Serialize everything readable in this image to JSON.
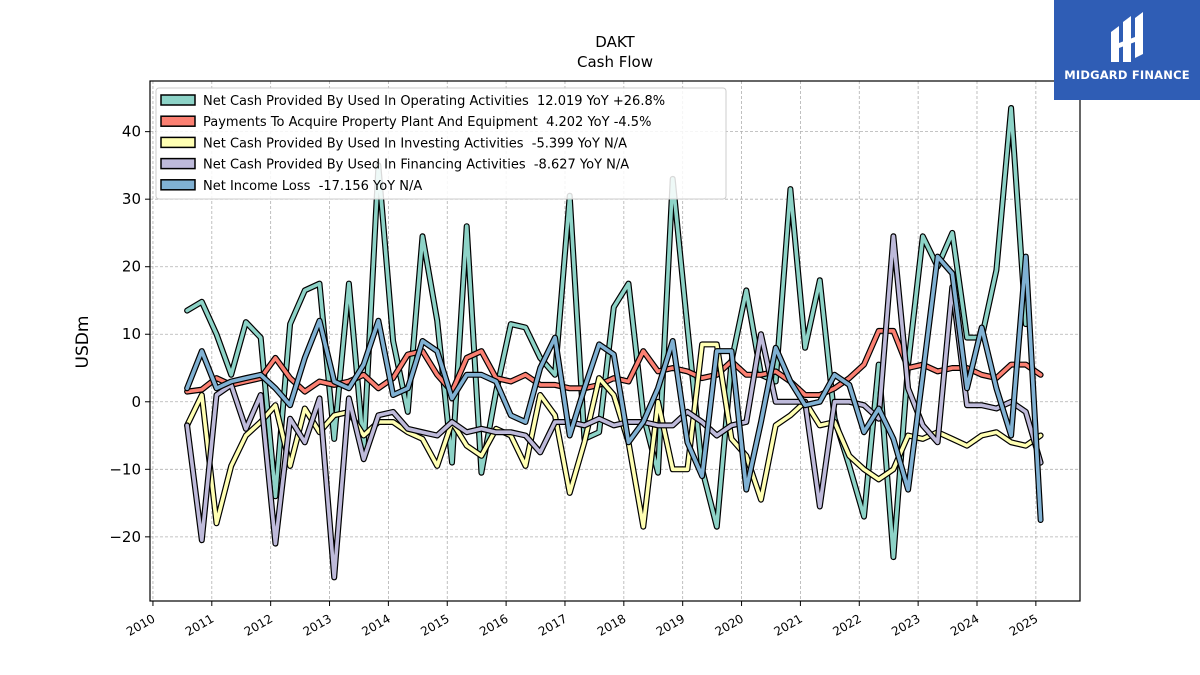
{
  "logo": {
    "text": "MIDGARD FINANCE"
  },
  "chart_data": {
    "type": "line",
    "title": "DAKT",
    "subtitle": "Cash Flow",
    "ylabel": "USDm",
    "xlabel": "",
    "xlim": [
      2009.95,
      2025.75
    ],
    "ylim": [
      -29.5,
      47.5
    ],
    "yticks": [
      -20,
      -10,
      0,
      10,
      20,
      30,
      40
    ],
    "xticks": [
      "2010",
      "2011",
      "2012",
      "2013",
      "2014",
      "2015",
      "2016",
      "2017",
      "2018",
      "2019",
      "2020",
      "2021",
      "2022",
      "2023",
      "2024",
      "2025"
    ],
    "grid": true,
    "legend_position": "upper-left",
    "series": [
      {
        "name": "Net Cash Provided By Used In Operating Activities",
        "legend": "Net Cash Provided By Used In Operating Activities  12.019 YoY +26.8%",
        "color": "#8dd3c7",
        "x": [
          2010.58,
          2010.83,
          2011.08,
          2011.33,
          2011.58,
          2011.83,
          2012.08,
          2012.33,
          2012.58,
          2012.83,
          2013.08,
          2013.33,
          2013.58,
          2013.83,
          2014.08,
          2014.33,
          2014.58,
          2014.83,
          2015.08,
          2015.33,
          2015.58,
          2015.83,
          2016.08,
          2016.33,
          2016.58,
          2016.83,
          2017.08,
          2017.33,
          2017.58,
          2017.83,
          2018.08,
          2018.33,
          2018.58,
          2018.83,
          2019.08,
          2019.33,
          2019.58,
          2019.83,
          2020.08,
          2020.33,
          2020.58,
          2020.83,
          2021.08,
          2021.33,
          2021.58,
          2021.83,
          2022.08,
          2022.33,
          2022.58,
          2022.83,
          2023.08,
          2023.33,
          2023.58,
          2023.83,
          2024.08,
          2024.33,
          2024.58,
          2024.83,
          2025.08
        ],
        "y": [
          13.5,
          14.8,
          10,
          4,
          11.8,
          9.5,
          -14,
          11.5,
          16.5,
          17.5,
          -5.5,
          17.5,
          -7,
          35,
          9,
          -1.5,
          24.5,
          12,
          -9,
          26,
          -10.5,
          1.5,
          11.5,
          11,
          6.5,
          4,
          30.5,
          -5.5,
          -4.5,
          14,
          17.5,
          -2,
          -10.5,
          33,
          11,
          -10,
          -18.5,
          6,
          16.5,
          4,
          3,
          31.5,
          8,
          18,
          -2.5,
          -9.5,
          -17,
          5.5,
          -23,
          5.5,
          24.5,
          20,
          25,
          9.5,
          9.5,
          19.5,
          43.5,
          11.5,
          null
        ]
      },
      {
        "name": "Payments To Acquire Property Plant And Equipment",
        "legend": "Payments To Acquire Property Plant And Equipment  4.202 YoY -4.5%",
        "color": "#fb8072",
        "x": [
          2010.58,
          2010.83,
          2011.08,
          2011.33,
          2011.58,
          2011.83,
          2012.08,
          2012.33,
          2012.58,
          2012.83,
          2013.08,
          2013.33,
          2013.58,
          2013.83,
          2014.08,
          2014.33,
          2014.58,
          2014.83,
          2015.08,
          2015.33,
          2015.58,
          2015.83,
          2016.08,
          2016.33,
          2016.58,
          2016.83,
          2017.08,
          2017.33,
          2017.58,
          2017.83,
          2018.08,
          2018.33,
          2018.58,
          2018.83,
          2019.08,
          2019.33,
          2019.58,
          2019.83,
          2020.08,
          2020.33,
          2020.58,
          2020.83,
          2021.08,
          2021.33,
          2021.58,
          2021.83,
          2022.08,
          2022.33,
          2022.58,
          2022.83,
          2023.08,
          2023.33,
          2023.58,
          2023.83,
          2024.08,
          2024.33,
          2024.58,
          2024.83,
          2025.08
        ],
        "y": [
          1.5,
          1.8,
          3.5,
          2.5,
          3,
          3.5,
          6.5,
          3.5,
          1.5,
          3,
          2.5,
          3,
          4,
          2,
          3.5,
          7,
          7.5,
          4,
          1.5,
          6.5,
          7.5,
          3.5,
          3,
          4,
          2.5,
          2.5,
          2,
          2,
          2.5,
          3.5,
          3,
          7.5,
          4.5,
          5,
          4.5,
          3.5,
          4,
          6,
          4,
          4,
          4.5,
          3,
          1,
          1,
          2,
          3.5,
          5.5,
          10.5,
          10.5,
          5,
          5.5,
          4.5,
          5,
          5,
          4,
          3.5,
          5.5,
          5.5,
          4
        ]
      },
      {
        "name": "Net Cash Provided By Used In Investing Activities",
        "legend": "Net Cash Provided By Used In Investing Activities  -5.399 YoY N/A",
        "color": "#ffffb3",
        "x": [
          2010.58,
          2010.83,
          2011.08,
          2011.33,
          2011.58,
          2011.83,
          2012.08,
          2012.33,
          2012.58,
          2012.83,
          2013.08,
          2013.33,
          2013.58,
          2013.83,
          2014.08,
          2014.33,
          2014.58,
          2014.83,
          2015.08,
          2015.33,
          2015.58,
          2015.83,
          2016.08,
          2016.33,
          2016.58,
          2016.83,
          2017.08,
          2017.33,
          2017.58,
          2017.83,
          2018.08,
          2018.33,
          2018.58,
          2018.83,
          2019.08,
          2019.33,
          2019.58,
          2019.83,
          2020.08,
          2020.33,
          2020.58,
          2020.83,
          2021.08,
          2021.33,
          2021.58,
          2021.83,
          2022.08,
          2022.33,
          2022.58,
          2022.83,
          2023.08,
          2023.33,
          2023.58,
          2023.83,
          2024.08,
          2024.33,
          2024.58,
          2024.83,
          2025.08
        ],
        "y": [
          -3.5,
          1,
          -18,
          -9.5,
          -5,
          -3,
          -0.5,
          -9.5,
          -1,
          -4.5,
          -2,
          -1.5,
          -5,
          -3,
          -3,
          -4.5,
          -5.5,
          -9.5,
          -3,
          -6.5,
          -8,
          -4,
          -5,
          -9.5,
          1,
          -2,
          -13.5,
          -6,
          3.5,
          1,
          -6,
          -18.5,
          0,
          -10,
          -10,
          8.5,
          8.5,
          -5.5,
          -8,
          -14.5,
          -3.5,
          -2,
          0,
          -3.5,
          -3,
          -8,
          -10,
          -11.5,
          -10,
          -5,
          -5.5,
          -4.5,
          -5.5,
          -6.5,
          -5,
          -4.5,
          -6,
          -6.5,
          -5
        ]
      },
      {
        "name": "Net Cash Provided By Used In Financing Activities",
        "legend": "Net Cash Provided By Used In Financing Activities  -8.627 YoY N/A",
        "color": "#bebada",
        "x": [
          2010.58,
          2010.83,
          2011.08,
          2011.33,
          2011.58,
          2011.83,
          2012.08,
          2012.33,
          2012.58,
          2012.83,
          2013.08,
          2013.33,
          2013.58,
          2013.83,
          2014.08,
          2014.33,
          2014.58,
          2014.83,
          2015.08,
          2015.33,
          2015.58,
          2015.83,
          2016.08,
          2016.33,
          2016.58,
          2016.83,
          2017.08,
          2017.33,
          2017.58,
          2017.83,
          2018.08,
          2018.33,
          2018.58,
          2018.83,
          2019.08,
          2019.33,
          2019.58,
          2019.83,
          2020.08,
          2020.33,
          2020.58,
          2020.83,
          2021.08,
          2021.33,
          2021.58,
          2021.83,
          2022.08,
          2022.33,
          2022.58,
          2022.83,
          2023.08,
          2023.33,
          2023.58,
          2023.83,
          2024.08,
          2024.33,
          2024.58,
          2024.83,
          2025.08
        ],
        "y": [
          -3.5,
          -20.5,
          1,
          2.5,
          -4,
          1,
          -21,
          -2.5,
          -6,
          0.5,
          -26,
          0.5,
          -8.5,
          -2,
          -1.5,
          -4,
          -4.5,
          -5,
          -3,
          -4.5,
          -4,
          -4.5,
          -4.5,
          -5,
          -7.5,
          -3,
          -3,
          -3.5,
          -2.5,
          -3.5,
          -3,
          -3,
          -3.5,
          -3.5,
          -1.5,
          -3,
          -5,
          -3.5,
          -3,
          10,
          0,
          0,
          0,
          -15.5,
          0,
          0,
          -0.5,
          -2.5,
          24.5,
          2,
          -3.5,
          -6,
          17,
          -0.5,
          -0.5,
          -1,
          0,
          -1.5,
          -9
        ]
      },
      {
        "name": "Net Income Loss",
        "legend": "Net Income Loss  -17.156 YoY N/A",
        "color": "#80b1d3",
        "x": [
          2010.58,
          2010.83,
          2011.08,
          2011.33,
          2011.58,
          2011.83,
          2012.08,
          2012.33,
          2012.58,
          2012.83,
          2013.08,
          2013.33,
          2013.58,
          2013.83,
          2014.08,
          2014.33,
          2014.58,
          2014.83,
          2015.08,
          2015.33,
          2015.58,
          2015.83,
          2016.08,
          2016.33,
          2016.58,
          2016.83,
          2017.08,
          2017.33,
          2017.58,
          2017.83,
          2018.08,
          2018.33,
          2018.58,
          2018.83,
          2019.08,
          2019.33,
          2019.58,
          2019.83,
          2020.08,
          2020.33,
          2020.58,
          2020.83,
          2021.08,
          2021.33,
          2021.58,
          2021.83,
          2022.08,
          2022.33,
          2022.58,
          2022.83,
          2023.08,
          2023.33,
          2023.58,
          2023.83,
          2024.08,
          2024.33,
          2024.58,
          2024.83,
          2025.08
        ],
        "y": [
          2,
          7.5,
          2,
          3,
          3.5,
          4,
          2,
          -0.5,
          6.5,
          12,
          3,
          2,
          5.5,
          12,
          1,
          2,
          9,
          7.5,
          0.5,
          4,
          4,
          3,
          -2,
          -3,
          5,
          9.5,
          -5,
          2,
          8.5,
          7,
          -6,
          -3,
          2,
          9,
          -6,
          -11,
          7.5,
          7.5,
          -13,
          -3,
          8,
          3,
          -0.5,
          0,
          4,
          2.5,
          -4.5,
          -1,
          -5.5,
          -13,
          4,
          21.5,
          19,
          2,
          11,
          2,
          -5,
          21.5,
          -17.5
        ]
      }
    ]
  }
}
